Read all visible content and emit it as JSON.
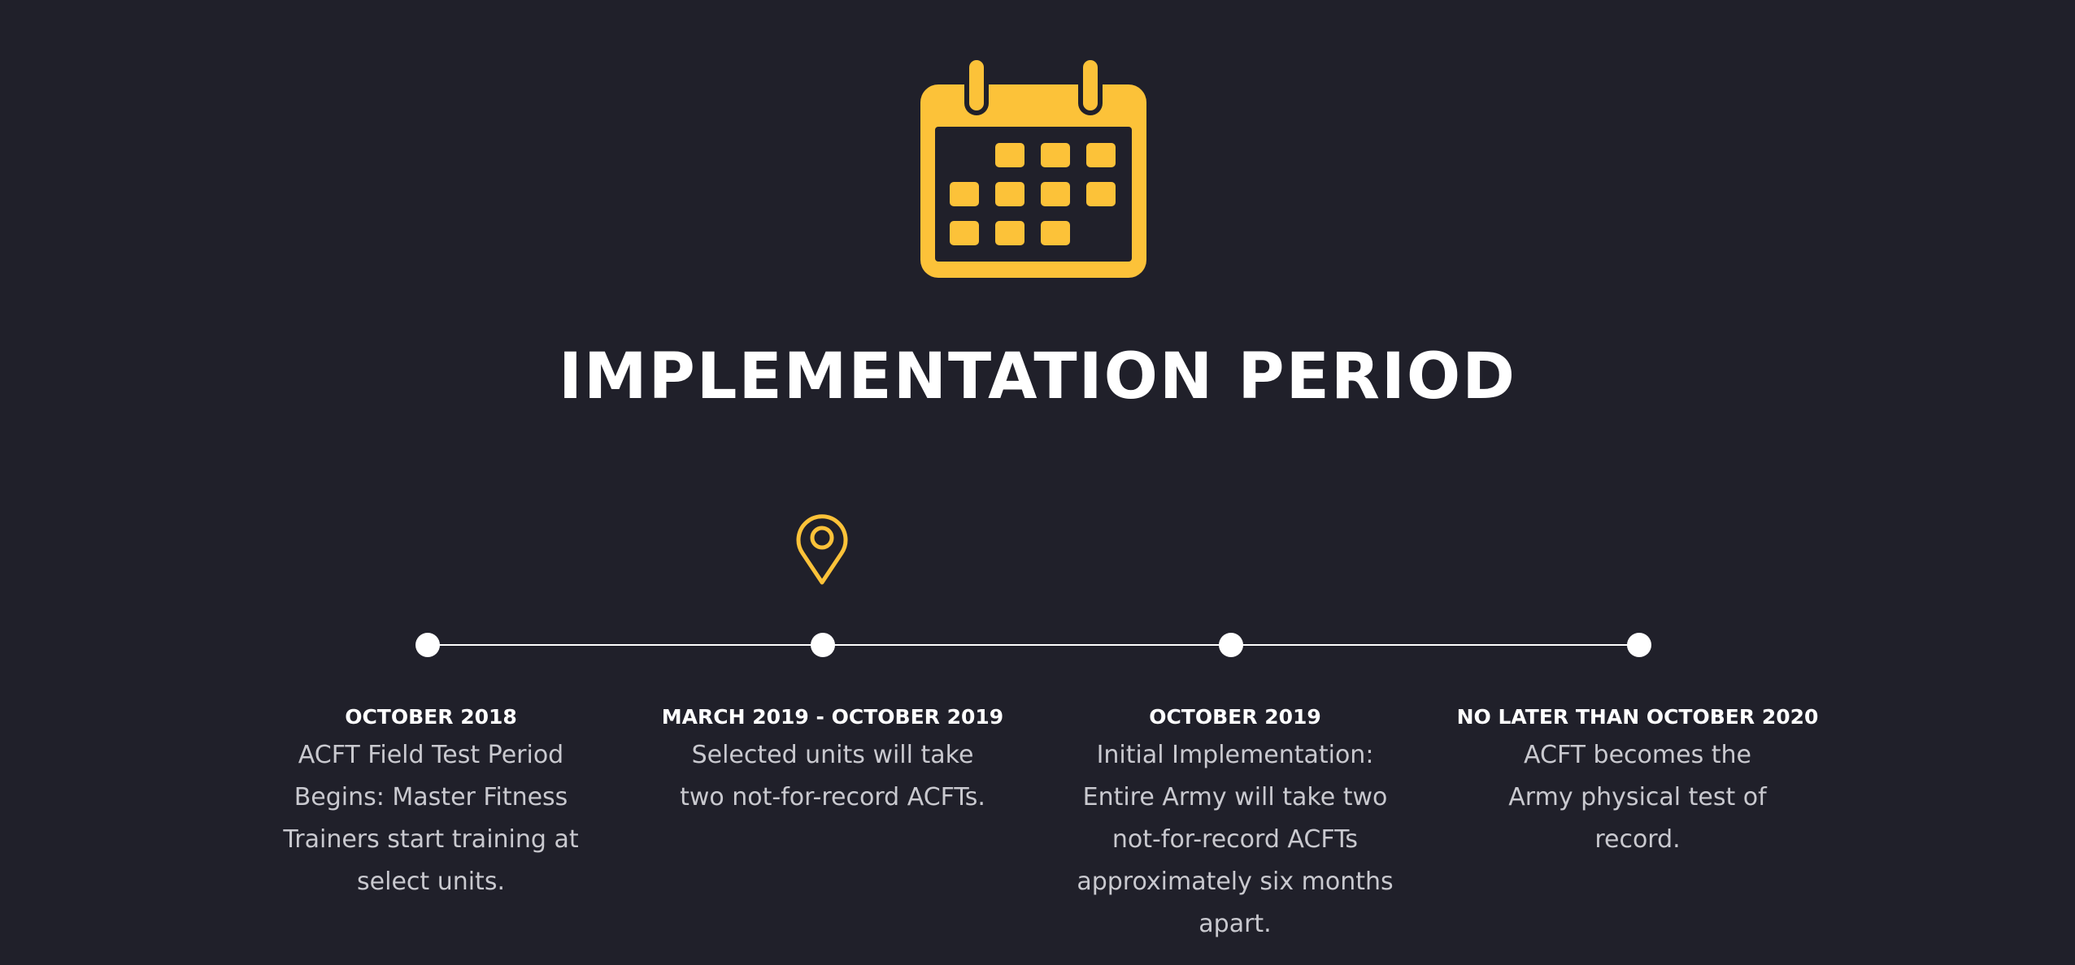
{
  "header": {
    "icon": "calendar-icon",
    "title": "IMPLEMENTATION PERIOD"
  },
  "timeline": {
    "current_marker_icon": "map-pin-icon",
    "accent_color": "#fcc239",
    "line_color": "#ffffff",
    "milestones": [
      {
        "date": "OCTOBER 2018",
        "description": "ACFT Field Test Period Begins: Master Fitness Trainers start training at select units."
      },
      {
        "date": "MARCH 2019 - OCTOBER 2019",
        "description": "Selected units will take two not-for-record ACFTs."
      },
      {
        "date": "OCTOBER 2019",
        "description": "Initial Implementation: Entire Army will take two not-for-record ACFTs approximately six months apart."
      },
      {
        "date": "NO LATER THAN OCTOBER 2020",
        "description": "ACFT becomes the Army physical test of record."
      }
    ]
  },
  "colors": {
    "background": "#20202a",
    "title_text": "#ffffff",
    "body_text": "#c9c9cf"
  }
}
